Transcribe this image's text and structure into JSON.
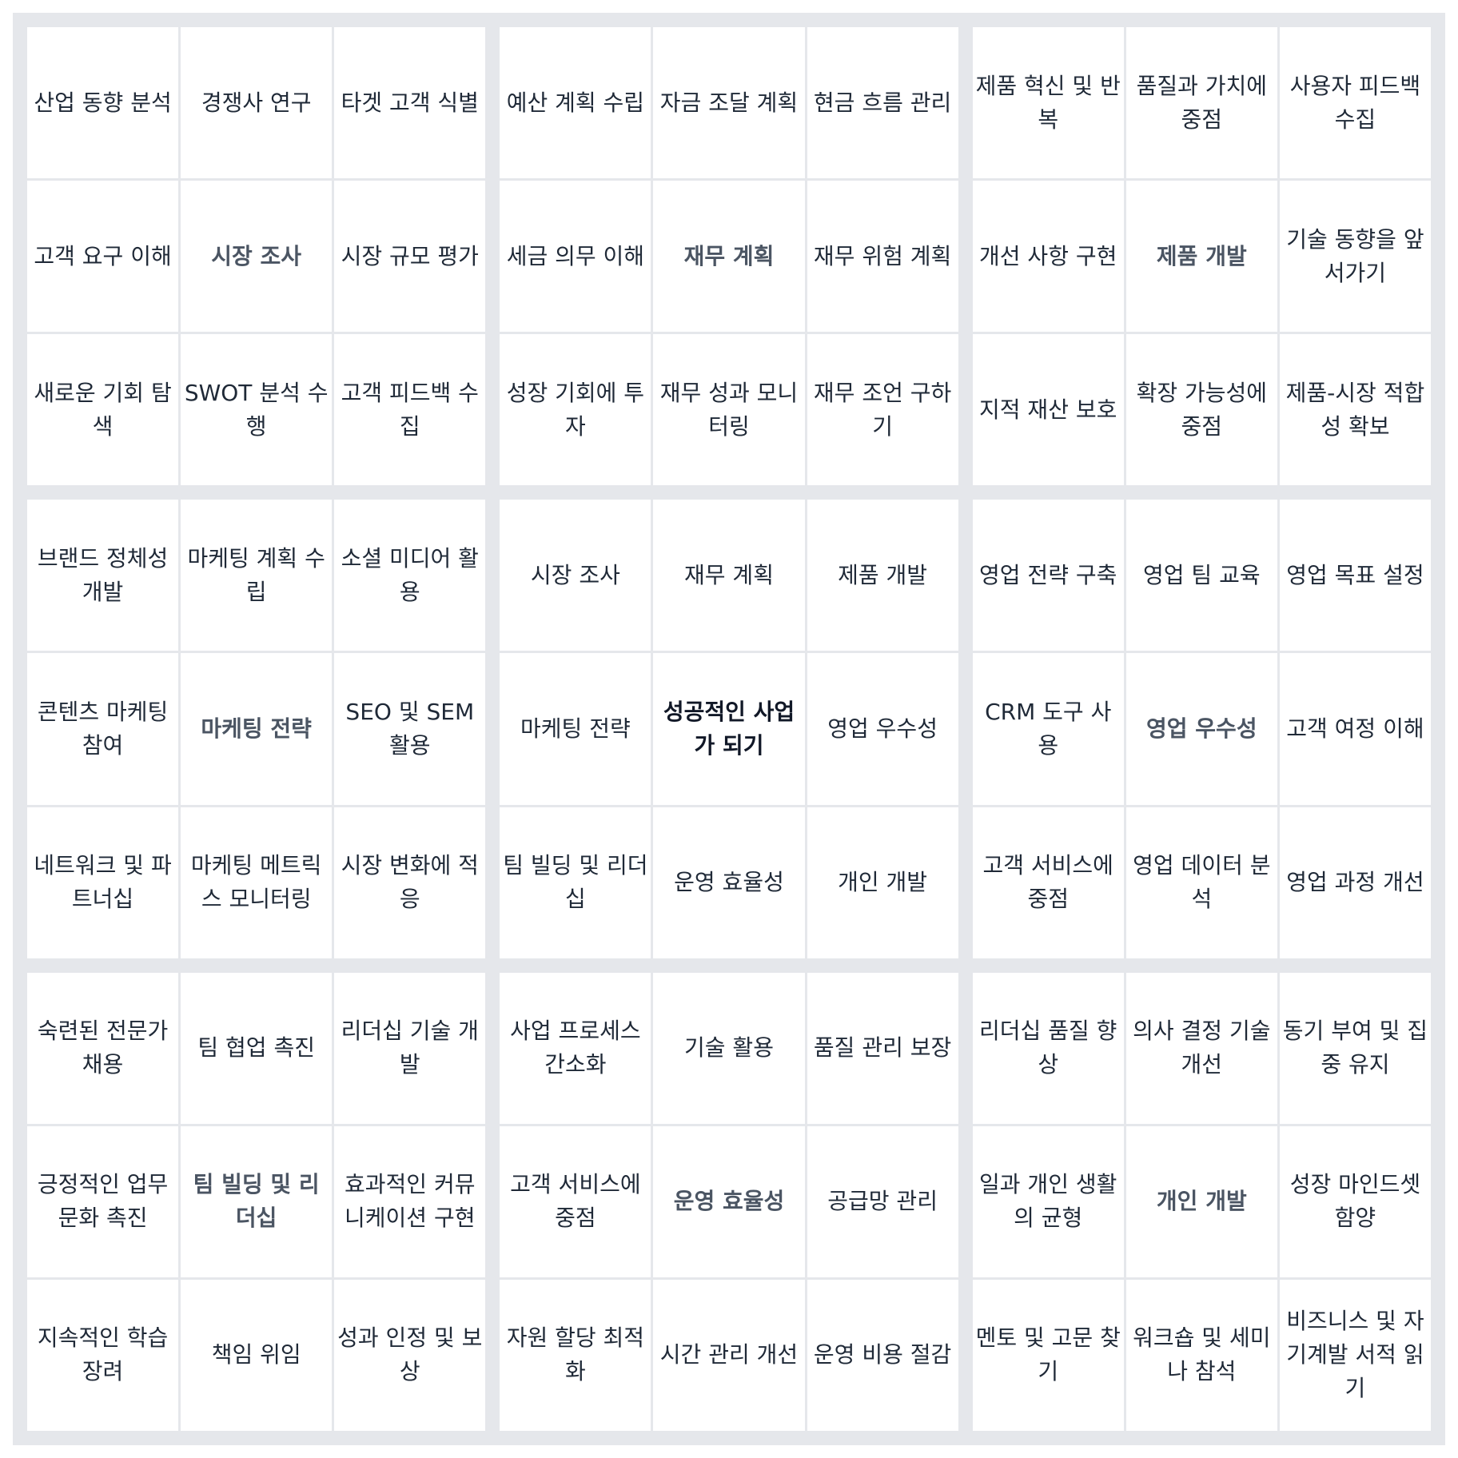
{
  "colors": {
    "background": "#e5e7eb",
    "cell": "#ffffff",
    "text": "#1f2937",
    "sub_goal_text": "#4b5563",
    "main_goal_text": "#111827"
  },
  "blocks": [
    {
      "center": "시장 조사",
      "cells": [
        "산업 동향 분석",
        "경쟁사 연구",
        "타겟 고객 식별",
        "고객 요구 이해",
        "시장 조사",
        "시장 규모 평가",
        "새로운 기회 탐색",
        "SWOT 분석 수행",
        "고객 피드백 수집"
      ]
    },
    {
      "center": "재무 계획",
      "cells": [
        "예산 계획 수립",
        "자금 조달 계획",
        "현금 흐름 관리",
        "세금 의무 이해",
        "재무 계획",
        "재무 위험 계획",
        "성장 기회에 투자",
        "재무 성과 모니터링",
        "재무 조언 구하기"
      ]
    },
    {
      "center": "제품 개발",
      "cells": [
        "제품 혁신 및 반복",
        "품질과 가치에 중점",
        "사용자 피드백 수집",
        "개선 사항 구현",
        "제품 개발",
        "기술 동향을 앞서가기",
        "지적 재산 보호",
        "확장 가능성에 중점",
        "제품-시장 적합성 확보"
      ]
    },
    {
      "center": "마케팅 전략",
      "cells": [
        "브랜드 정체성 개발",
        "마케팅 계획 수립",
        "소셜 미디어 활용",
        "콘텐츠 마케팅 참여",
        "마케팅 전략",
        "SEO 및 SEM 활용",
        "네트워크 및 파트너십",
        "마케팅 메트릭스 모니터링",
        "시장 변화에 적응"
      ]
    },
    {
      "center": "성공적인 사업가 되기",
      "cells": [
        "시장 조사",
        "재무 계획",
        "제품 개발",
        "마케팅 전략",
        "성공적인 사업가 되기",
        "영업 우수성",
        "팀 빌딩 및 리더십",
        "운영 효율성",
        "개인 개발"
      ]
    },
    {
      "center": "영업 우수성",
      "cells": [
        "영업 전략 구축",
        "영업 팀 교육",
        "영업 목표 설정",
        "CRM 도구 사용",
        "영업 우수성",
        "고객 여정 이해",
        "고객 서비스에 중점",
        "영업 데이터 분석",
        "영업 과정 개선"
      ]
    },
    {
      "center": "팀 빌딩 및 리더십",
      "cells": [
        "숙련된 전문가 채용",
        "팀 협업 촉진",
        "리더십 기술 개발",
        "긍정적인 업무 문화 촉진",
        "팀 빌딩 및 리더십",
        "효과적인 커뮤니케이션 구현",
        "지속적인 학습 장려",
        "책임 위임",
        "성과 인정 및 보상"
      ]
    },
    {
      "center": "운영 효율성",
      "cells": [
        "사업 프로세스 간소화",
        "기술 활용",
        "품질 관리 보장",
        "고객 서비스에 중점",
        "운영 효율성",
        "공급망 관리",
        "자원 할당 최적화",
        "시간 관리 개선",
        "운영 비용 절감"
      ]
    },
    {
      "center": "개인 개발",
      "cells": [
        "리더십 품질 향상",
        "의사 결정 기술 개선",
        "동기 부여 및 집중 유지",
        "일과 개인 생활의 균형",
        "개인 개발",
        "성장 마인드셋 함양",
        "멘토 및 고문 찾기",
        "워크숍 및 세미나 참석",
        "비즈니스 및 자기계발 서적 읽기"
      ]
    }
  ]
}
